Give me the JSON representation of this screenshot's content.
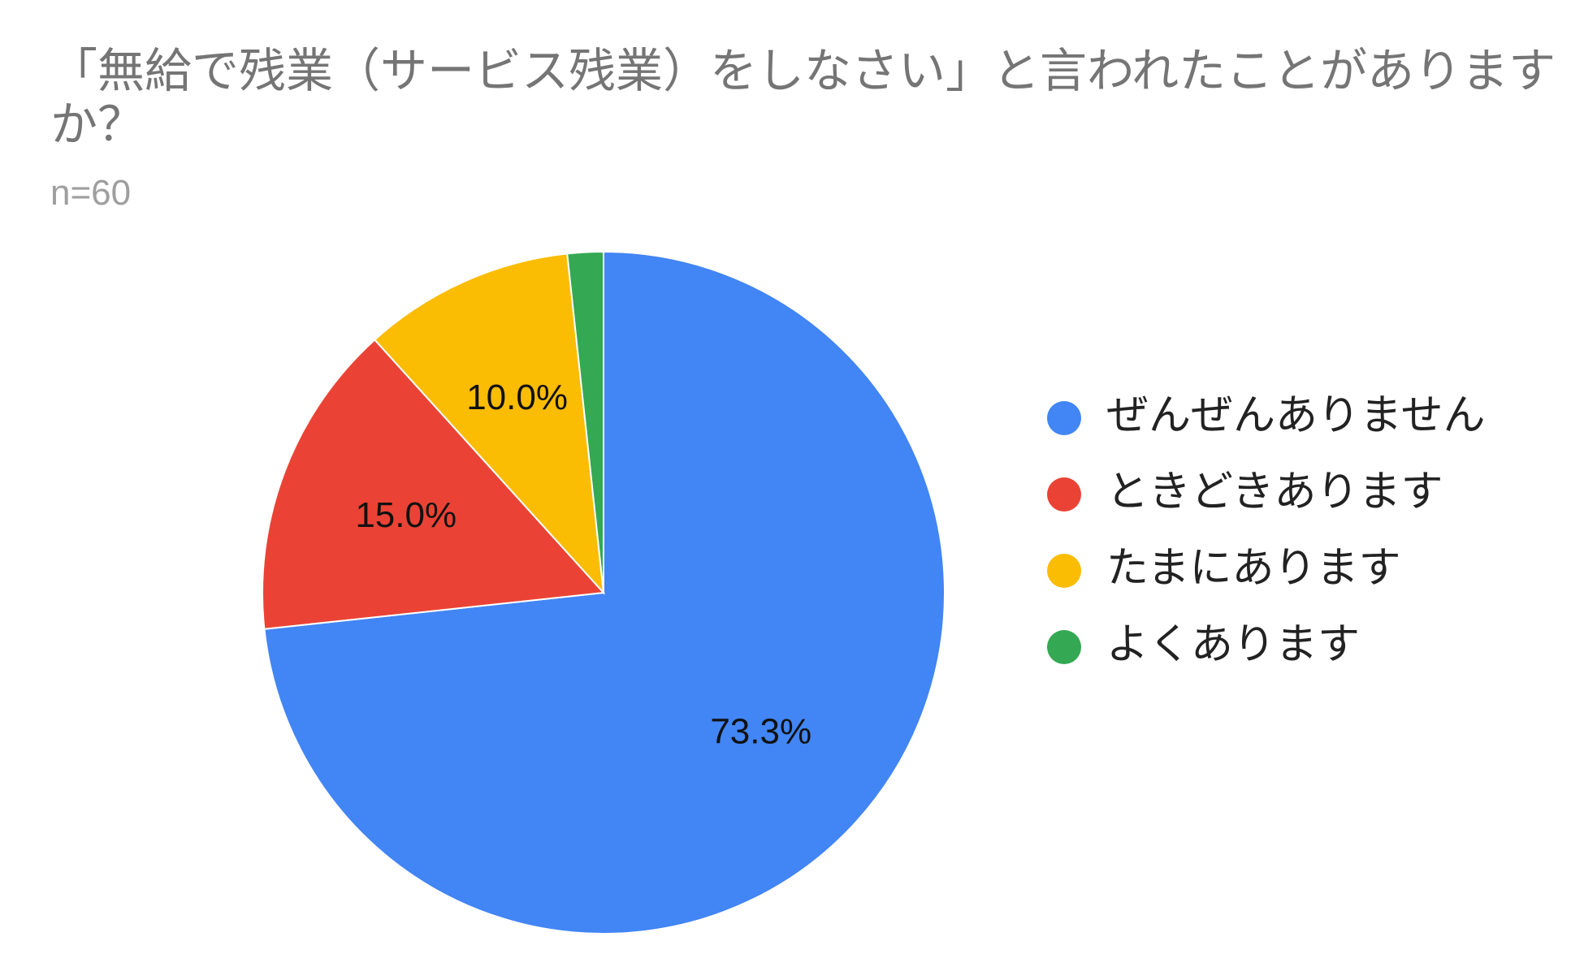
{
  "chart_data": {
    "type": "pie",
    "title": "「無給で残業（サービス残業）をしなさい」と言われたことがありますか？",
    "subtitle": "n=60",
    "categories": [
      "ぜんぜんありません",
      "ときどきあります",
      "たまにあります",
      "よくあります"
    ],
    "values": [
      73.3,
      15.0,
      10.0,
      1.7
    ],
    "data_labels": [
      "73.3%",
      "15.0%",
      "10.0%",
      ""
    ],
    "colors": [
      "#4285F4",
      "#EA4335",
      "#FBBC04",
      "#34A853"
    ],
    "legend_position": "right",
    "start": "12 o'clock, clockwise"
  }
}
